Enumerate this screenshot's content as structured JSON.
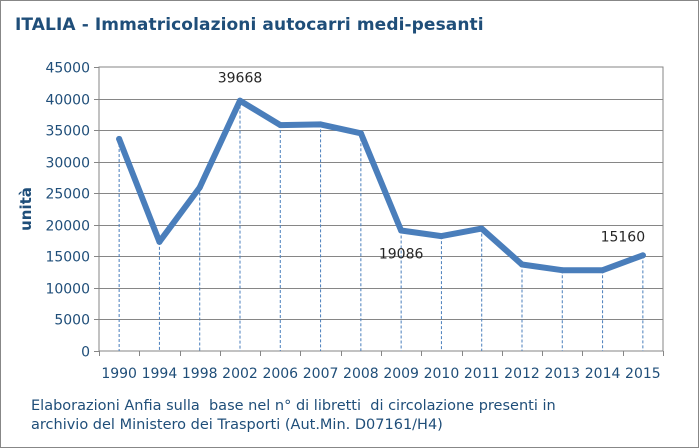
{
  "chart_data": {
    "type": "line",
    "title": "ITALIA - Immatricolazioni autocarri medi-pesanti",
    "ylabel": "unità",
    "xlabel": "",
    "categories": [
      "1990",
      "1994",
      "1998",
      "2002",
      "2006",
      "2007",
      "2008",
      "2009",
      "2010",
      "2011",
      "2012",
      "2013",
      "2014",
      "2015"
    ],
    "series": [
      {
        "values": [
          33600,
          17300,
          25900,
          39668,
          35800,
          35900,
          34500,
          19086,
          18200,
          19400,
          13700,
          12800,
          12800,
          15160
        ]
      }
    ],
    "data_labels": [
      {
        "index": 3,
        "text": "39668"
      },
      {
        "index": 7,
        "text": "19086"
      },
      {
        "index": 13,
        "text": "15160"
      }
    ],
    "ylim": [
      0,
      45000
    ],
    "yticks": [
      0,
      5000,
      10000,
      15000,
      20000,
      25000,
      30000,
      35000,
      40000,
      45000
    ],
    "grid": "horizontal",
    "drop_lines": true,
    "colors": {
      "line": "#4a7ebb",
      "text": "#1f4e79",
      "grid": "#868686",
      "frame": "#878787"
    }
  },
  "footnote": {
    "line1": "Elaborazioni Anfia sulla  base nel n° di libretti  di circolazione presenti in",
    "line2": "archivio del Ministero dei Trasporti (Aut.Min. D07161/H4)"
  }
}
